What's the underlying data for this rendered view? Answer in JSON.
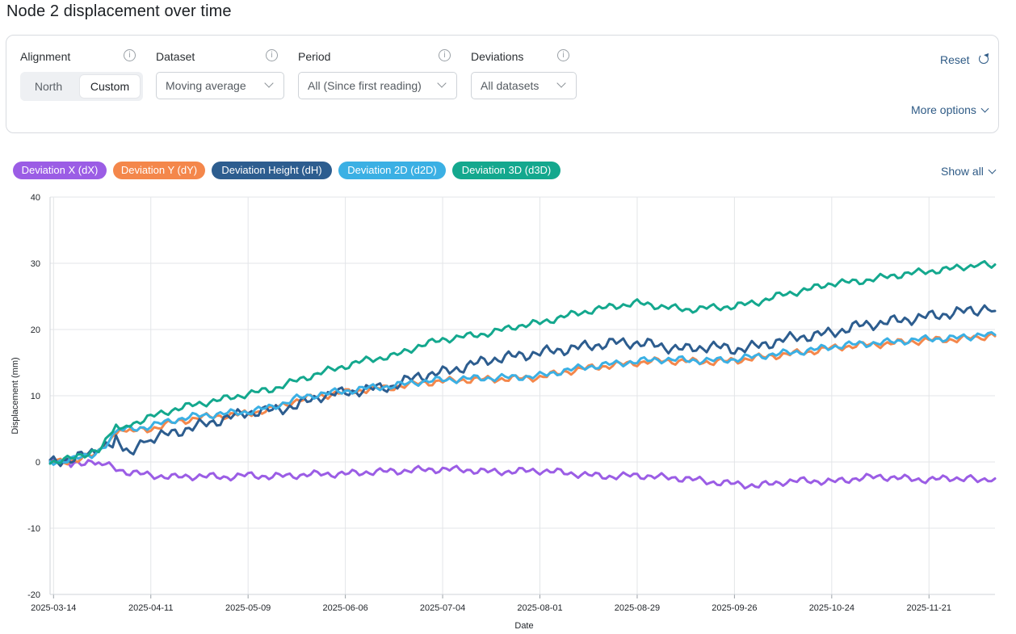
{
  "page": {
    "title": "Node 2 displacement over time"
  },
  "filters": {
    "alignment": {
      "label": "Alignment",
      "options": [
        "North",
        "Custom"
      ],
      "selected": "Custom"
    },
    "dataset": {
      "label": "Dataset",
      "value": "Moving average"
    },
    "period": {
      "label": "Period",
      "value": "All (Since first reading)"
    },
    "deviations": {
      "label": "Deviations",
      "value": "All datasets"
    },
    "reset_label": "Reset",
    "more_options_label": "More options",
    "info_glyph": "i"
  },
  "legend": {
    "show_all_label": "Show all",
    "items": [
      {
        "label": "Deviation X (dX)",
        "color": "#9b5de5"
      },
      {
        "label": "Deviation Y (dY)",
        "color": "#f4874b"
      },
      {
        "label": "Deviation Height (dH)",
        "color": "#2d5d8f"
      },
      {
        "label": "Deviation 2D (d2D)",
        "color": "#3bb0e4"
      },
      {
        "label": "Deviation 3D (d3D)",
        "color": "#14a88e"
      }
    ]
  },
  "chart_data": {
    "type": "line",
    "xlabel": "Date",
    "ylabel": "Displacement (mm)",
    "ylim": [
      -20,
      40
    ],
    "yticks": [
      -20,
      -10,
      0,
      10,
      20,
      30,
      40
    ],
    "xlim": [
      "2025-03-13",
      "2025-12-10"
    ],
    "xticks": [
      "2025-03-14",
      "2025-04-11",
      "2025-05-09",
      "2025-06-06",
      "2025-07-04",
      "2025-08-01",
      "2025-08-29",
      "2025-09-26",
      "2025-10-24",
      "2025-11-21"
    ],
    "grid": true,
    "series": [
      {
        "name": "Deviation X (dX)",
        "color": "#9b5de5",
        "x": [
          "2025-03-13",
          "2025-03-20",
          "2025-03-24",
          "2025-03-28",
          "2025-04-04",
          "2025-04-11",
          "2025-04-18",
          "2025-04-25",
          "2025-05-02",
          "2025-05-09",
          "2025-05-16",
          "2025-05-23",
          "2025-05-30",
          "2025-06-06",
          "2025-06-13",
          "2025-06-20",
          "2025-06-27",
          "2025-07-04",
          "2025-07-11",
          "2025-07-18",
          "2025-07-25",
          "2025-08-01",
          "2025-08-08",
          "2025-08-15",
          "2025-08-22",
          "2025-08-29",
          "2025-09-05",
          "2025-09-12",
          "2025-09-19",
          "2025-09-26",
          "2025-10-03",
          "2025-10-10",
          "2025-10-17",
          "2025-10-24",
          "2025-10-31",
          "2025-11-07",
          "2025-11-14",
          "2025-11-21",
          "2025-11-28",
          "2025-12-05",
          "2025-12-10"
        ],
        "y": [
          0.0,
          -0.4,
          0.2,
          -0.3,
          -1.5,
          -2.0,
          -2.3,
          -2.1,
          -2.3,
          -2.0,
          -2.2,
          -2.0,
          -1.8,
          -1.8,
          -1.5,
          -1.4,
          -1.2,
          -1.1,
          -1.2,
          -1.5,
          -1.4,
          -1.3,
          -1.6,
          -2.0,
          -2.2,
          -2.0,
          -2.3,
          -2.5,
          -3.0,
          -3.3,
          -3.6,
          -3.0,
          -2.8,
          -3.0,
          -2.5,
          -2.2,
          -2.5,
          -2.7,
          -2.4,
          -2.6,
          -2.5
        ]
      },
      {
        "name": "Deviation Y (dY)",
        "color": "#f4874b",
        "x": [
          "2025-03-13",
          "2025-03-20",
          "2025-03-27",
          "2025-04-01",
          "2025-04-04",
          "2025-04-11",
          "2025-04-18",
          "2025-04-25",
          "2025-05-02",
          "2025-05-09",
          "2025-05-16",
          "2025-05-23",
          "2025-05-30",
          "2025-06-06",
          "2025-06-13",
          "2025-06-20",
          "2025-06-27",
          "2025-07-04",
          "2025-07-11",
          "2025-07-18",
          "2025-07-25",
          "2025-08-01",
          "2025-08-08",
          "2025-08-15",
          "2025-08-22",
          "2025-08-29",
          "2025-09-05",
          "2025-09-12",
          "2025-09-19",
          "2025-09-26",
          "2025-10-03",
          "2025-10-10",
          "2025-10-17",
          "2025-10-24",
          "2025-10-31",
          "2025-11-07",
          "2025-11-14",
          "2025-11-21",
          "2025-11-28",
          "2025-12-05",
          "2025-12-10"
        ],
        "y": [
          0.0,
          0.2,
          1.3,
          4.2,
          4.5,
          5.0,
          6.0,
          6.7,
          7.0,
          7.3,
          8.0,
          9.3,
          10.0,
          10.5,
          11.0,
          11.3,
          11.9,
          12.2,
          12.4,
          12.5,
          12.6,
          12.8,
          13.6,
          14.2,
          14.6,
          15.0,
          15.3,
          15.2,
          15.1,
          15.3,
          15.8,
          16.2,
          16.6,
          17.2,
          17.6,
          17.8,
          18.1,
          18.4,
          18.5,
          18.8,
          19.0
        ]
      },
      {
        "name": "Deviation Height (dH)",
        "color": "#2d5d8f",
        "x": [
          "2025-03-13",
          "2025-03-20",
          "2025-03-27",
          "2025-04-01",
          "2025-04-05",
          "2025-04-11",
          "2025-04-18",
          "2025-04-25",
          "2025-05-02",
          "2025-05-09",
          "2025-05-16",
          "2025-05-23",
          "2025-05-30",
          "2025-06-06",
          "2025-06-13",
          "2025-06-20",
          "2025-06-27",
          "2025-07-04",
          "2025-07-11",
          "2025-07-18",
          "2025-07-25",
          "2025-08-01",
          "2025-08-08",
          "2025-08-15",
          "2025-08-22",
          "2025-08-29",
          "2025-09-05",
          "2025-09-12",
          "2025-09-19",
          "2025-09-26",
          "2025-10-03",
          "2025-10-10",
          "2025-10-17",
          "2025-10-24",
          "2025-10-31",
          "2025-11-07",
          "2025-11-14",
          "2025-11-21",
          "2025-11-28",
          "2025-12-05",
          "2025-12-10"
        ],
        "y": [
          0.0,
          0.5,
          1.8,
          3.5,
          1.8,
          3.5,
          4.5,
          5.5,
          6.5,
          7.5,
          7.8,
          8.5,
          10.0,
          10.5,
          11.0,
          11.5,
          13.0,
          13.5,
          14.5,
          15.5,
          16.0,
          16.5,
          17.0,
          17.5,
          18.0,
          18.0,
          17.5,
          17.0,
          17.5,
          17.0,
          17.5,
          18.5,
          19.0,
          19.5,
          20.5,
          21.0,
          21.5,
          22.0,
          22.5,
          23.0,
          22.8
        ]
      },
      {
        "name": "Deviation 2D (d2D)",
        "color": "#3bb0e4",
        "x": [
          "2025-03-13",
          "2025-03-20",
          "2025-03-27",
          "2025-04-01",
          "2025-04-04",
          "2025-04-11",
          "2025-04-18",
          "2025-04-25",
          "2025-05-02",
          "2025-05-09",
          "2025-05-16",
          "2025-05-23",
          "2025-05-30",
          "2025-06-06",
          "2025-06-13",
          "2025-06-20",
          "2025-06-27",
          "2025-07-04",
          "2025-07-11",
          "2025-07-18",
          "2025-07-25",
          "2025-08-01",
          "2025-08-08",
          "2025-08-15",
          "2025-08-22",
          "2025-08-29",
          "2025-09-05",
          "2025-09-12",
          "2025-09-19",
          "2025-09-26",
          "2025-10-03",
          "2025-10-10",
          "2025-10-17",
          "2025-10-24",
          "2025-10-31",
          "2025-11-07",
          "2025-11-14",
          "2025-11-21",
          "2025-11-28",
          "2025-12-05",
          "2025-12-10"
        ],
        "y": [
          0.0,
          0.4,
          1.5,
          4.6,
          4.9,
          5.4,
          6.4,
          7.0,
          7.3,
          7.6,
          8.3,
          9.6,
          10.3,
          10.7,
          11.2,
          11.5,
          12.1,
          12.4,
          12.6,
          12.7,
          12.8,
          13.0,
          13.8,
          14.4,
          14.8,
          15.2,
          15.5,
          15.4,
          15.3,
          15.5,
          16.0,
          16.4,
          16.8,
          17.4,
          17.8,
          18.0,
          18.3,
          18.6,
          18.7,
          19.0,
          19.2
        ]
      },
      {
        "name": "Deviation 3D (d3D)",
        "color": "#14a88e",
        "x": [
          "2025-03-13",
          "2025-03-20",
          "2025-03-27",
          "2025-04-01",
          "2025-04-04",
          "2025-04-11",
          "2025-04-18",
          "2025-04-25",
          "2025-05-02",
          "2025-05-09",
          "2025-05-16",
          "2025-05-23",
          "2025-05-30",
          "2025-06-06",
          "2025-06-13",
          "2025-06-20",
          "2025-06-27",
          "2025-07-04",
          "2025-07-11",
          "2025-07-18",
          "2025-07-25",
          "2025-08-01",
          "2025-08-08",
          "2025-08-15",
          "2025-08-22",
          "2025-08-29",
          "2025-09-05",
          "2025-09-12",
          "2025-09-19",
          "2025-09-26",
          "2025-10-03",
          "2025-10-10",
          "2025-10-17",
          "2025-10-24",
          "2025-10-31",
          "2025-11-07",
          "2025-11-14",
          "2025-11-21",
          "2025-11-28",
          "2025-12-05",
          "2025-12-10"
        ],
        "y": [
          0.0,
          0.6,
          2.0,
          5.5,
          5.5,
          6.8,
          8.0,
          8.8,
          9.5,
          10.3,
          11.0,
          12.3,
          13.5,
          14.5,
          15.5,
          16.0,
          17.5,
          18.5,
          19.0,
          19.5,
          20.5,
          21.0,
          22.0,
          22.8,
          23.5,
          24.0,
          23.5,
          23.0,
          23.3,
          23.5,
          24.2,
          25.3,
          26.0,
          27.0,
          27.2,
          27.8,
          28.4,
          28.8,
          29.2,
          29.8,
          29.8
        ]
      }
    ]
  }
}
